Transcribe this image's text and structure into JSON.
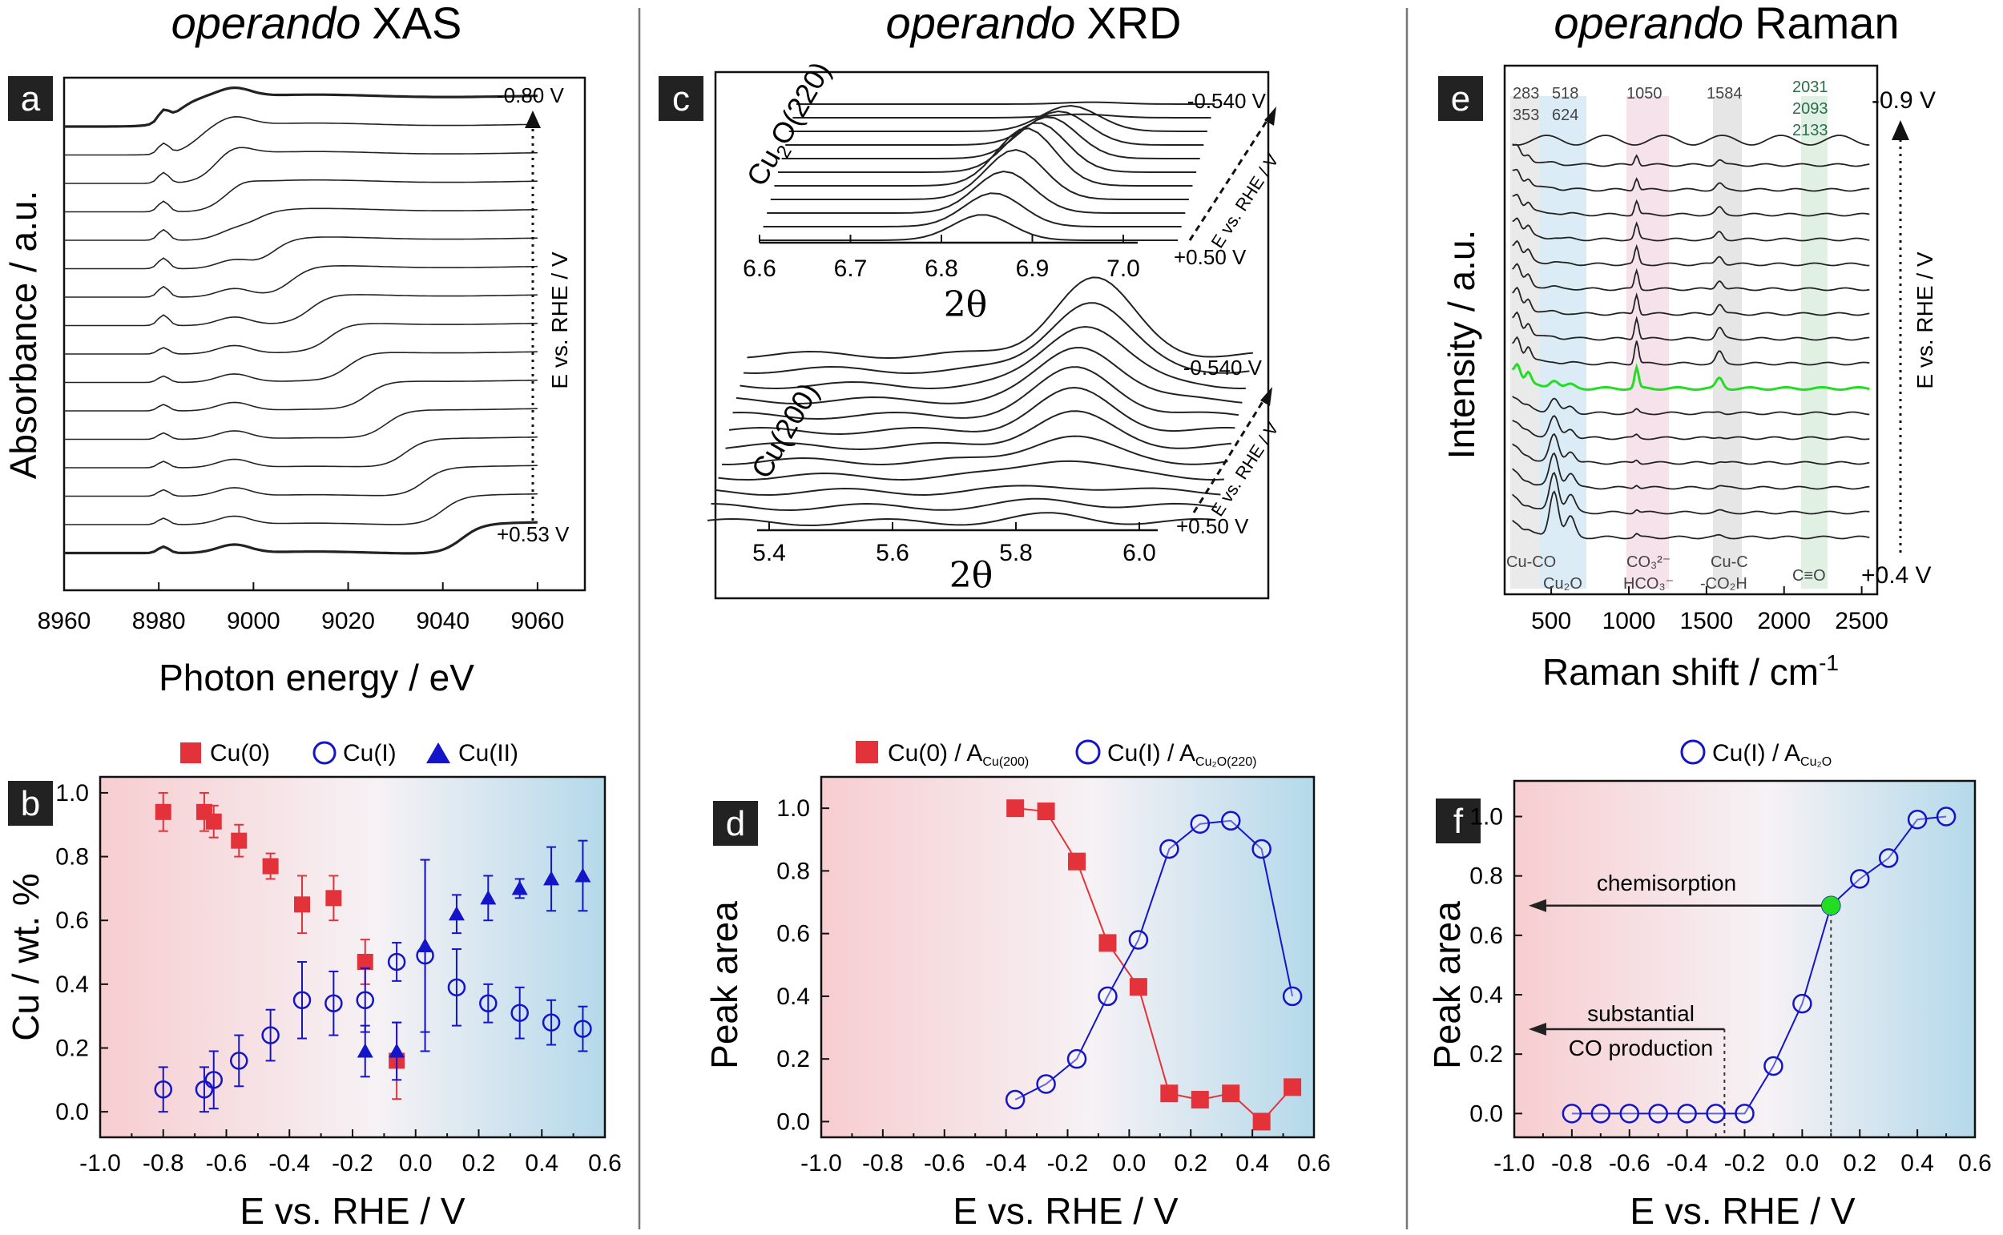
{
  "colors": {
    "red": "#e3323a",
    "blue": "#1414c8",
    "green": "#22dd22",
    "axis": "#111111",
    "trace": "#333333",
    "bg_red": "#f7cdd0",
    "bg_blue": "#b4d9ea"
  },
  "titles": {
    "xas": "XAS",
    "xrd": "XRD",
    "raman": "Raman",
    "prefix": "operando"
  },
  "panel_letters": {
    "a": "a",
    "b": "b",
    "c": "c",
    "d": "d",
    "e": "e",
    "f": "f"
  },
  "chart_data": [
    {
      "id": "a",
      "type": "line",
      "title": "operando XAS",
      "xlabel": "Photon energy / eV",
      "ylabel": "Absorbance / a.u.",
      "xlim": [
        8960,
        9070
      ],
      "xticks": [
        8960,
        8980,
        9000,
        9020,
        9040,
        9060
      ],
      "n_traces": 16,
      "annotations": {
        "top": "-0.80 V",
        "bottom": "+0.53 V",
        "arrow_label": "E vs. RHE / V"
      }
    },
    {
      "id": "b",
      "type": "scatter",
      "xlabel": "E vs. RHE / V",
      "ylabel": "Cu  / wt. %",
      "xlim": [
        -1.0,
        0.6
      ],
      "ylim": [
        -0.08,
        1.05
      ],
      "xticks": [
        -1.0,
        -0.8,
        -0.6,
        -0.4,
        -0.2,
        0.0,
        0.2,
        0.4,
        0.6
      ],
      "yticks": [
        0.0,
        0.2,
        0.4,
        0.6,
        0.8,
        1.0
      ],
      "series": [
        {
          "name": "Cu(0)",
          "marker": "square",
          "color": "#e3323a",
          "x": [
            -0.8,
            -0.67,
            -0.64,
            -0.56,
            -0.46,
            -0.36,
            -0.26,
            -0.16,
            -0.06
          ],
          "y": [
            0.94,
            0.94,
            0.91,
            0.85,
            0.77,
            0.65,
            0.67,
            0.47,
            0.16
          ],
          "err": [
            0.06,
            0.06,
            0.05,
            0.05,
            0.04,
            0.09,
            0.07,
            0.07,
            0.12
          ]
        },
        {
          "name": "Cu(I)",
          "marker": "circle",
          "color": "#1414c8",
          "x": [
            -0.8,
            -0.67,
            -0.64,
            -0.56,
            -0.46,
            -0.36,
            -0.26,
            -0.16,
            -0.06,
            0.03,
            0.13,
            0.23,
            0.33,
            0.43,
            0.53
          ],
          "y": [
            0.07,
            0.07,
            0.1,
            0.16,
            0.24,
            0.35,
            0.34,
            0.35,
            0.47,
            0.49,
            0.39,
            0.34,
            0.31,
            0.28,
            0.26
          ],
          "err": [
            0.07,
            0.07,
            0.09,
            0.08,
            0.08,
            0.12,
            0.1,
            0.1,
            0.06,
            0.3,
            0.12,
            0.06,
            0.08,
            0.07,
            0.07
          ]
        },
        {
          "name": "Cu(II)",
          "marker": "triangle",
          "color": "#1414c8",
          "x": [
            -0.16,
            -0.06,
            0.03,
            0.13,
            0.23,
            0.33,
            0.43,
            0.53
          ],
          "y": [
            0.19,
            0.19,
            0.52,
            0.62,
            0.67,
            0.7,
            0.73,
            0.74
          ],
          "err": [
            0.08,
            0.09,
            0.27,
            0.06,
            0.07,
            0.03,
            0.1,
            0.11
          ]
        }
      ]
    },
    {
      "id": "c",
      "type": "line",
      "title": "operando XRD",
      "upper": {
        "label": "Cu2O(220)",
        "xticks": [
          6.6,
          6.7,
          6.8,
          6.9,
          7.0
        ],
        "xlabel": "2θ",
        "top": "-0.540 V",
        "bottom": "+0.50 V",
        "arrow_label": "E vs. RHE / V"
      },
      "lower": {
        "label": "Cu(200)",
        "xticks": [
          5.4,
          5.6,
          5.8,
          6.0
        ],
        "xlabel": "2θ",
        "top": "-0.540 V",
        "bottom": "+0.50 V",
        "arrow_label": "E vs. RHE / V"
      }
    },
    {
      "id": "d",
      "type": "line",
      "xlabel": "E vs. RHE / V",
      "ylabel": "Peak area",
      "xlim": [
        -1.0,
        0.6
      ],
      "ylim": [
        -0.05,
        1.1
      ],
      "xticks": [
        -1.0,
        -0.8,
        -0.6,
        -0.4,
        -0.2,
        0.0,
        0.2,
        0.4,
        0.6
      ],
      "yticks": [
        0.0,
        0.2,
        0.4,
        0.6,
        0.8,
        1.0
      ],
      "legend": {
        "s1": "Cu(0) / A",
        "s1_sub": "Cu(200)",
        "s2": "Cu(I) / A",
        "s2_sub": "Cu₂O(220)"
      },
      "series": [
        {
          "name": "Cu(0)",
          "marker": "square",
          "color": "#e3323a",
          "x": [
            -0.37,
            -0.27,
            -0.17,
            -0.07,
            0.03,
            0.13,
            0.23,
            0.33,
            0.43,
            0.53
          ],
          "y": [
            1.0,
            0.99,
            0.83,
            0.57,
            0.43,
            0.09,
            0.07,
            0.09,
            0.0,
            0.11
          ]
        },
        {
          "name": "Cu(I)",
          "marker": "circle",
          "color": "#1414c8",
          "x": [
            -0.37,
            -0.27,
            -0.17,
            -0.07,
            0.03,
            0.13,
            0.23,
            0.33,
            0.43,
            0.53
          ],
          "y": [
            0.07,
            0.12,
            0.2,
            0.4,
            0.58,
            0.87,
            0.95,
            0.96,
            0.87,
            0.4
          ]
        }
      ]
    },
    {
      "id": "e",
      "type": "line",
      "title": "operando Raman",
      "xlabel": "Raman shift / cm",
      "xlabel_sup": "-1",
      "ylabel": "Intensity / a.u.",
      "xlim": [
        200,
        2600
      ],
      "xticks": [
        500,
        1000,
        1500,
        2000,
        2500
      ],
      "n_traces": 17,
      "top_label": "-0.9 V",
      "bottom_label": "+0.4 V",
      "arrow_label": "E vs. RHE / V",
      "peak_labels": {
        "p283": "283",
        "p353": "353",
        "p518": "518",
        "p624": "624",
        "p1050": "1050",
        "p1584": "1584",
        "p2031": "2031",
        "p2093": "2093",
        "p2133": "2133"
      },
      "band_labels": {
        "cuco": "Cu-CO",
        "cu2o": "Cu₂O",
        "co3": "CO₃²⁻",
        "hco3": "HCO₃⁻",
        "cuc1": "Cu-C",
        "cuc2": "-CO₂H",
        "ceo": "C≡O"
      }
    },
    {
      "id": "f",
      "type": "line",
      "xlabel": "E vs. RHE / V",
      "ylabel": "Peak area",
      "xlim": [
        -1.0,
        0.6
      ],
      "ylim": [
        -0.08,
        1.12
      ],
      "xticks": [
        -1.0,
        -0.8,
        -0.6,
        -0.4,
        -0.2,
        0.0,
        0.2,
        0.4,
        0.6
      ],
      "yticks": [
        0.0,
        0.2,
        0.4,
        0.6,
        0.8,
        1.0
      ],
      "legend": {
        "s1": "Cu(I) / A",
        "s1_sub": "Cu₂O"
      },
      "series": [
        {
          "name": "Cu(I)",
          "marker": "circle",
          "color": "#1414c8",
          "x": [
            -0.8,
            -0.7,
            -0.6,
            -0.5,
            -0.4,
            -0.3,
            -0.2,
            -0.1,
            0.0,
            0.1,
            0.2,
            0.3,
            0.4,
            0.5
          ],
          "y": [
            0.0,
            0.0,
            0.0,
            0.0,
            0.0,
            0.0,
            0.0,
            0.16,
            0.37,
            0.7,
            0.79,
            0.86,
            0.99,
            1.0
          ]
        }
      ],
      "highlight": {
        "x": 0.1,
        "y": 0.7
      },
      "annotations": {
        "chem": "chemisorption",
        "sub1": "substantial",
        "sub2": "CO production",
        "sub_x": -0.27
      }
    }
  ]
}
